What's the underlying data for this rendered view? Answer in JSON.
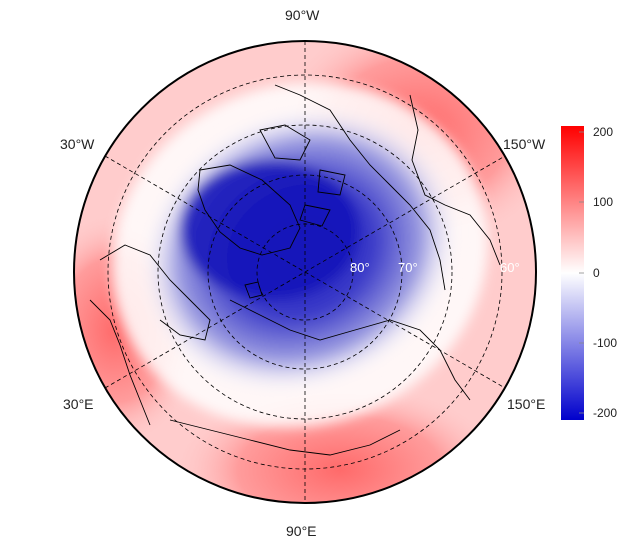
{
  "map": {
    "projection": "north-polar-stereographic",
    "longitude_labels": {
      "top": "90°W",
      "upper_left": "30°W",
      "upper_right": "150°W",
      "lower_left": "30°E",
      "lower_right": "150°E",
      "bottom": "90°E"
    },
    "latitude_labels": [
      "80°",
      "70°",
      "60°"
    ],
    "field_colors": {
      "low": "#0000cc",
      "zero": "#ffffff",
      "high": "#ff0000"
    }
  },
  "colorbar": {
    "range": [
      -215,
      215
    ],
    "ticks": [
      "200",
      "100",
      "0",
      "-100",
      "-200"
    ]
  }
}
